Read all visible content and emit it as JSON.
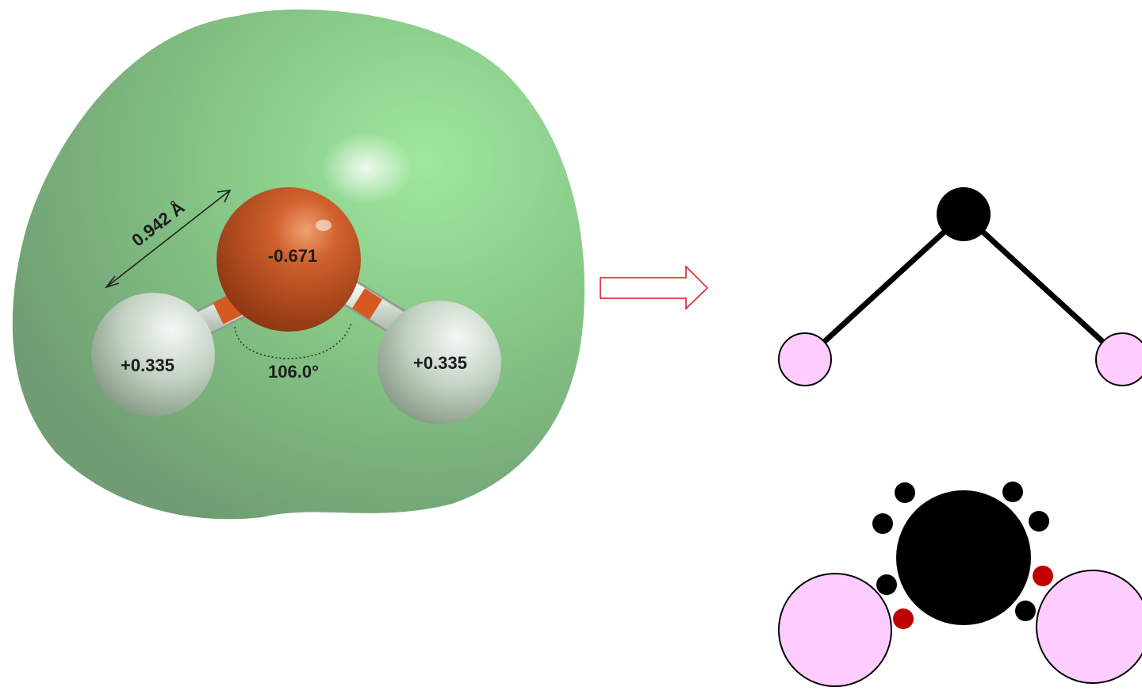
{
  "molecule": {
    "bond_length_label": "0.942 Å",
    "bond_angle_label": "106.0°",
    "atoms": [
      {
        "element": "O",
        "charge_label": "-0.671",
        "color": "#c9521e"
      },
      {
        "element": "H",
        "charge_label": "+0.335",
        "color": "#dfe8df"
      },
      {
        "element": "H",
        "charge_label": "+0.335",
        "color": "#dfe8df"
      }
    ],
    "surface_color": "#8fd98f"
  },
  "arrow": {
    "color": "#e01010"
  },
  "stick_model": {
    "oxygen_color": "#000000",
    "hydrogen_color": "#ffccff"
  },
  "electron_model": {
    "oxygen_color": "#000000",
    "hydrogen_color": "#ffccff",
    "lone_electron_color": "#000000",
    "shared_electron_color": "#c00000"
  }
}
